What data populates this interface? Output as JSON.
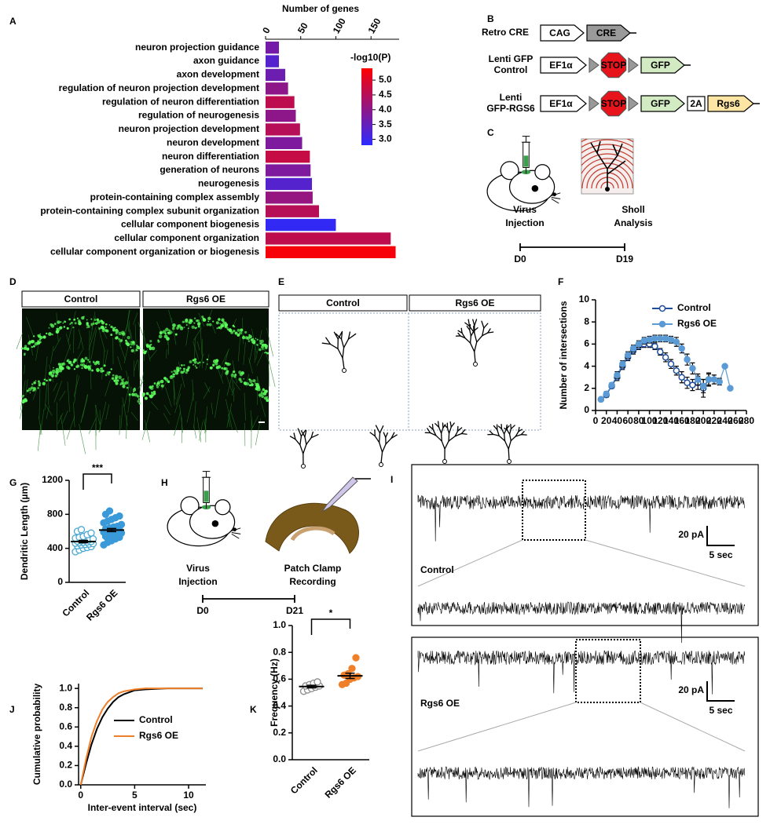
{
  "panel_labels": [
    "A",
    "B",
    "C",
    "D",
    "E",
    "F",
    "G",
    "H",
    "I",
    "J",
    "K"
  ],
  "chart_data": [
    {
      "type": "hbar",
      "xlabel": "Number of genes",
      "categories": [
        "neuron projection guidance",
        "axon guidance",
        "axon development",
        "regulation of neuron projection development",
        "regulation of neuron differentiation",
        "regulation of neurogenesis",
        "neuron projection development",
        "neuron development",
        "neuron differentiation",
        "generation of neurons",
        "neurogenesis",
        "protein-containing complex assembly",
        "protein-containing complex subunit organization",
        "cellular component biogenesis",
        "cellular component organization",
        "cellular component organization or biogenesis"
      ],
      "values": [
        19,
        19,
        28,
        32,
        41,
        43,
        49,
        52,
        63,
        64,
        66,
        67,
        76,
        100,
        178,
        185
      ],
      "color_values": [
        3.7,
        3.3,
        3.6,
        4.0,
        4.6,
        4.0,
        4.5,
        3.8,
        4.7,
        3.8,
        3.3,
        4.1,
        4.5,
        2.9,
        4.6,
        5.3
      ],
      "colorbar": {
        "title": "-log10(P)",
        "lim": [
          2.8,
          5.4
        ],
        "colors": [
          "#2b2bff",
          "#ff0000"
        ],
        "ticks": [
          {
            "value": 3,
            "label": "3.0"
          },
          3.5,
          {
            "value": 4,
            "label": "4.0"
          },
          4.5,
          {
            "value": 5,
            "label": "5.0"
          }
        ]
      },
      "xlim": [
        0,
        190
      ],
      "xticks": [
        0,
        50,
        100,
        150
      ]
    },
    {
      "type": "line",
      "ylabel": "Number of intersections",
      "legend": "upper right",
      "series": [
        {
          "name": "Control",
          "color": "#1f4e9c",
          "marker": "open",
          "x": [
            10,
            20,
            30,
            40,
            50,
            60,
            70,
            80,
            90,
            100,
            110,
            120,
            130,
            140,
            150,
            160,
            170,
            180,
            190,
            200,
            210
          ],
          "values": [
            1.0,
            1.4,
            2.2,
            3.0,
            4.0,
            4.8,
            5.4,
            5.8,
            6.0,
            6.0,
            5.8,
            5.3,
            4.8,
            4.2,
            3.6,
            3.0,
            2.5,
            2.3,
            2.5,
            2.0,
            2.8
          ],
          "errors": [
            0.1,
            0.2,
            0.2,
            0.3,
            0.3,
            0.3,
            0.3,
            0.3,
            0.3,
            0.3,
            0.3,
            0.3,
            0.4,
            0.4,
            0.4,
            0.5,
            0.5,
            0.5,
            0.6,
            0.8,
            0.6
          ]
        },
        {
          "name": "Rgs6 OE",
          "color": "#5b9bd5",
          "marker": "filled",
          "x": [
            10,
            20,
            30,
            40,
            50,
            60,
            70,
            80,
            90,
            100,
            110,
            120,
            130,
            140,
            150,
            160,
            170,
            180,
            190,
            200,
            210,
            220,
            230,
            240,
            250
          ],
          "values": [
            1.0,
            1.5,
            2.3,
            3.2,
            4.2,
            5.0,
            5.6,
            6.0,
            6.3,
            6.4,
            6.5,
            6.5,
            6.5,
            6.4,
            6.2,
            5.6,
            4.6,
            3.8,
            2.8,
            2.2,
            2.8,
            2.8,
            2.6,
            4.0,
            2.0
          ],
          "errors": [
            0.1,
            0.2,
            0.2,
            0.3,
            0.3,
            0.3,
            0.3,
            0.3,
            0.3,
            0.3,
            0.3,
            0.3,
            0.3,
            0.3,
            0.4,
            0.4,
            0.5,
            0.5,
            0.5,
            0.6,
            0.5,
            0.4,
            0.3,
            0,
            0
          ]
        }
      ],
      "xlim": [
        0,
        280
      ],
      "xticks": [
        0,
        20,
        40,
        60,
        80,
        100,
        120,
        140,
        160,
        180,
        200,
        220,
        240,
        260,
        280
      ],
      "ylim": [
        0,
        10
      ],
      "yticks": [
        0,
        2,
        4,
        6,
        8,
        10
      ]
    },
    {
      "type": "strip",
      "ylabel": "Dendritic Length (µm)",
      "categories": [
        "Control",
        "Rgs6 OE"
      ],
      "groups": [
        {
          "color": "#4aa8d0",
          "marker": "open",
          "values": [
            360,
            380,
            400,
            410,
            420,
            430,
            440,
            445,
            450,
            455,
            460,
            465,
            470,
            475,
            480,
            485,
            490,
            495,
            500,
            510,
            520,
            530,
            540,
            560,
            580,
            600,
            620
          ],
          "mean": 480,
          "sem": 14
        },
        {
          "color": "#3a9ad9",
          "marker": "filled",
          "values": [
            440,
            470,
            490,
            510,
            530,
            540,
            550,
            560,
            570,
            580,
            590,
            600,
            605,
            610,
            620,
            630,
            640,
            650,
            660,
            680,
            700,
            720,
            740,
            760,
            780,
            800,
            840
          ],
          "mean": 615,
          "sem": 18
        }
      ],
      "annotation": "***",
      "ylim": [
        0,
        1200
      ],
      "yticks": [
        0,
        400,
        800,
        1200
      ]
    },
    {
      "type": "line",
      "xlabel": "Inter-event interval (sec)",
      "ylabel": "Cumulative probability",
      "legend": "right",
      "series": [
        {
          "name": "Control",
          "color": "#000000",
          "x": [
            0,
            0.5,
            1,
            1.5,
            2,
            2.5,
            3,
            3.5,
            4,
            5,
            6,
            8,
            11.3
          ],
          "values": [
            0,
            0.22,
            0.42,
            0.58,
            0.7,
            0.79,
            0.86,
            0.91,
            0.94,
            0.98,
            0.99,
            1,
            1
          ]
        },
        {
          "name": "Rgs6 OE",
          "color": "#f07f2a",
          "x": [
            0,
            0.5,
            1,
            1.5,
            2,
            2.5,
            3,
            3.5,
            4,
            5,
            6,
            8,
            11.3
          ],
          "values": [
            0,
            0.27,
            0.5,
            0.66,
            0.78,
            0.86,
            0.91,
            0.95,
            0.97,
            0.99,
            1,
            1,
            1
          ]
        }
      ],
      "xlim": [
        -0.2,
        11.6
      ],
      "xticks": [
        0,
        5,
        10
      ],
      "ylim": [
        0,
        1.05
      ],
      "yticks": [
        {
          "value": 0,
          "label": "0.0"
        },
        0.2,
        0.4,
        0.6,
        0.8,
        {
          "value": 1,
          "label": "1.0"
        }
      ]
    },
    {
      "type": "strip",
      "ylabel": "Frequency (Hz)",
      "categories": [
        "Control",
        "Rgs6 OE"
      ],
      "groups": [
        {
          "color": "#8c8c8c",
          "marker": "open",
          "values": [
            0.51,
            0.52,
            0.53,
            0.54,
            0.55,
            0.55,
            0.56,
            0.57,
            0.58
          ],
          "mean": 0.545,
          "sem": 0.01
        },
        {
          "color": "#f07f2a",
          "marker": "filled",
          "values": [
            0.56,
            0.57,
            0.6,
            0.61,
            0.62,
            0.63,
            0.64,
            0.68,
            0.76
          ],
          "mean": 0.625,
          "sem": 0.02
        }
      ],
      "annotation": "*",
      "ylim": [
        0,
        1.0
      ],
      "yticks": [
        {
          "value": 0,
          "label": "0.0"
        },
        0.2,
        0.4,
        0.6,
        0.8,
        {
          "value": 1,
          "label": "1.0"
        }
      ]
    }
  ],
  "constructs": {
    "rows": [
      {
        "label": [
          "Retro CRE"
        ],
        "parts": [
          {
            "text": "CAG",
            "color": "#ffffff"
          },
          {
            "text": "CRE",
            "color": "#9a9a9a"
          }
        ]
      },
      {
        "label": [
          "Lenti GFP",
          "Control"
        ],
        "parts": [
          {
            "text": "EF1α",
            "color": "#ffffff"
          },
          {
            "text": "STOP",
            "color": "#e8141b",
            "shape": "octagon"
          },
          {
            "text": "GFP",
            "color": "#d3ebc3"
          }
        ]
      },
      {
        "label": [
          "Lenti",
          "GFP-RGS6"
        ],
        "parts": [
          {
            "text": "EF1α",
            "color": "#ffffff"
          },
          {
            "text": "STOP",
            "color": "#e8141b",
            "shape": "octagon"
          },
          {
            "text": "GFP",
            "color": "#d3ebc3"
          },
          {
            "text": "2A",
            "color": "#ffffff",
            "shape": "box"
          },
          {
            "text": "Rgs6",
            "color": "#fde6a4"
          }
        ]
      }
    ]
  },
  "timeline_c": {
    "steps": [
      [
        "Virus",
        "Injection"
      ],
      [
        "Sholl",
        "Analysis"
      ]
    ],
    "days": [
      "D0",
      "D19"
    ]
  },
  "micrographs": {
    "headers": [
      "Control",
      "Rgs6 OE"
    ]
  },
  "tracings": {
    "headers": [
      "Control",
      "Rgs6 OE"
    ]
  },
  "timeline_h": {
    "steps": [
      [
        "Virus",
        "Injection"
      ],
      [
        "Patch Clamp",
        "Recording"
      ]
    ],
    "days": [
      "D0",
      "D21"
    ]
  },
  "traces": [
    {
      "label": "Control",
      "scale_y": "20 pA",
      "scale_x": "5 sec"
    },
    {
      "label": "Rgs6 OE",
      "scale_y": "20 pA",
      "scale_x": "5 sec"
    }
  ]
}
